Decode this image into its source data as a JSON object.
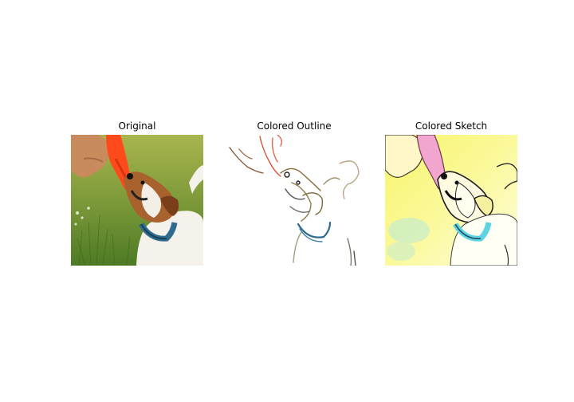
{
  "figure": {
    "panels": [
      {
        "title": "Original"
      },
      {
        "title": "Colored Outline"
      },
      {
        "title": "Colored Sketch"
      }
    ]
  },
  "colors": {
    "background": "#ffffff",
    "grass": "#7e9a3a",
    "toy": "#ff4a1c",
    "dog_brown": "#a8622e",
    "collar": "#2f6b8f",
    "sketch_yellow": "#fbf99a",
    "sketch_pink": "#f2a6cf",
    "sketch_cyan": "#5fd3e3"
  }
}
